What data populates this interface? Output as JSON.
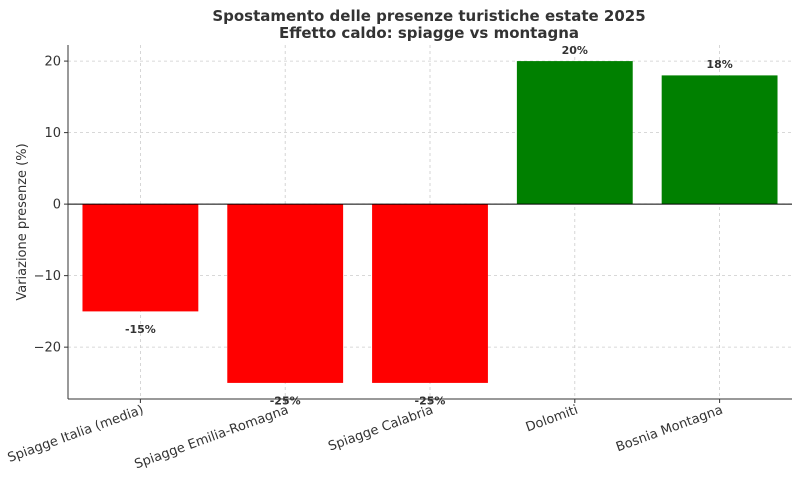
{
  "chart_data": {
    "type": "bar",
    "title_line1": "Spostamento delle presenze turistiche estate 2025",
    "title_line2": "Effetto caldo: spiagge vs montagna",
    "xlabel": "",
    "ylabel": "Variazione presenze (%)",
    "categories": [
      "Spiagge Italia (media)",
      "Spiagge Emilia-Romagna",
      "Spiagge Calabria",
      "Dolomiti",
      "Bosnia Montagna"
    ],
    "values": [
      -15,
      -25,
      -25,
      20,
      18
    ],
    "data_labels": [
      "-15%",
      "-25%",
      "-25%",
      "20%",
      "18%"
    ],
    "colors": [
      "#ff0000",
      "#ff0000",
      "#ff0000",
      "#008000",
      "#008000"
    ],
    "ylim": [
      -27.25,
      22.25
    ],
    "yticks": [
      -20,
      -10,
      0,
      10,
      20
    ],
    "ytick_labels": [
      "−20",
      "−10",
      "0",
      "10",
      "20"
    ],
    "grid": true,
    "zero_line": true
  }
}
